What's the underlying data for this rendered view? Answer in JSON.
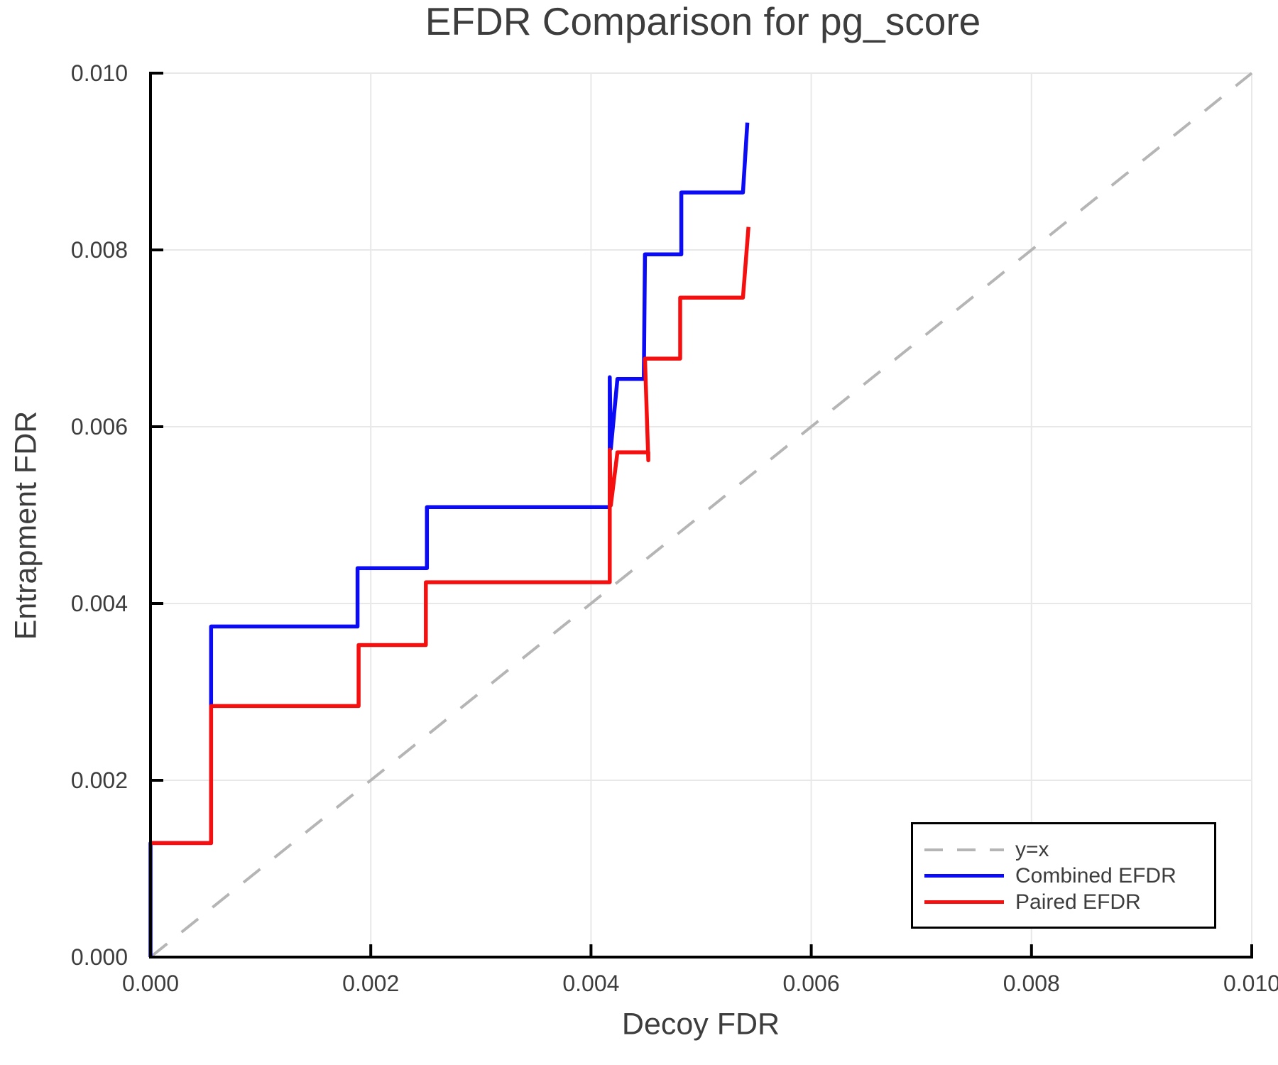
{
  "title": "EFDR Comparison for pg_score",
  "xlabel": "Decoy FDR",
  "ylabel": "Entrapment FDR",
  "colors": {
    "combined": "#0b0bf5",
    "paired": "#f50f0f",
    "reference": "#b5b5b5",
    "grid": "#e8e8e8",
    "spine": "#000000",
    "text": "#3d3d3d"
  },
  "legend": {
    "items": [
      {
        "label": "y=x",
        "color": "#b5b5b5",
        "style": "dashed"
      },
      {
        "label": "Combined EFDR",
        "color": "#0b0bf5",
        "style": "solid"
      },
      {
        "label": "Paired EFDR",
        "color": "#f50f0f",
        "style": "solid"
      }
    ]
  },
  "chart_data": {
    "type": "line",
    "title": "EFDR Comparison for pg_score",
    "xlabel": "Decoy FDR",
    "ylabel": "Entrapment FDR",
    "xlim": [
      0,
      0.01
    ],
    "ylim": [
      0,
      0.01
    ],
    "grid": true,
    "legend_position": "lower right",
    "x_ticks": [
      "0.000",
      "0.002",
      "0.004",
      "0.006",
      "0.008",
      "0.010"
    ],
    "y_ticks": [
      "0.000",
      "0.002",
      "0.004",
      "0.006",
      "0.008",
      "0.010"
    ],
    "reference_line": {
      "name": "y=x",
      "from": [
        0,
        0
      ],
      "to": [
        0.01,
        0.01
      ],
      "dashed": true
    },
    "series": [
      {
        "name": "Combined EFDR",
        "color": "#0b0bf5",
        "points": [
          [
            0.0,
            0.0
          ],
          [
            0.0,
            0.00129
          ],
          [
            0.00055,
            0.00129
          ],
          [
            0.00055,
            0.00374
          ],
          [
            0.00188,
            0.00374
          ],
          [
            0.00188,
            0.0044
          ],
          [
            0.00251,
            0.0044
          ],
          [
            0.00251,
            0.00509
          ],
          [
            0.00417,
            0.00509
          ],
          [
            0.00417,
            0.00656
          ],
          [
            0.00418,
            0.00575
          ],
          [
            0.00424,
            0.00654
          ],
          [
            0.00448,
            0.00654
          ],
          [
            0.00449,
            0.00795
          ],
          [
            0.00482,
            0.00795
          ],
          [
            0.00482,
            0.00865
          ],
          [
            0.00538,
            0.00865
          ],
          [
            0.00542,
            0.00944
          ]
        ]
      },
      {
        "name": "Paired EFDR",
        "color": "#f50f0f",
        "points": [
          [
            0.0,
            0.00129
          ],
          [
            0.00055,
            0.00129
          ],
          [
            0.00055,
            0.00284
          ],
          [
            0.00189,
            0.00284
          ],
          [
            0.00189,
            0.00353
          ],
          [
            0.0025,
            0.00353
          ],
          [
            0.0025,
            0.00424
          ],
          [
            0.00417,
            0.00424
          ],
          [
            0.00417,
            0.00574
          ],
          [
            0.00418,
            0.00511
          ],
          [
            0.00424,
            0.00571
          ],
          [
            0.00452,
            0.00571
          ],
          [
            0.00452,
            0.00562
          ],
          [
            0.00449,
            0.00677
          ],
          [
            0.00481,
            0.00677
          ],
          [
            0.00481,
            0.00746
          ],
          [
            0.00538,
            0.00746
          ],
          [
            0.00543,
            0.00826
          ]
        ]
      }
    ]
  }
}
